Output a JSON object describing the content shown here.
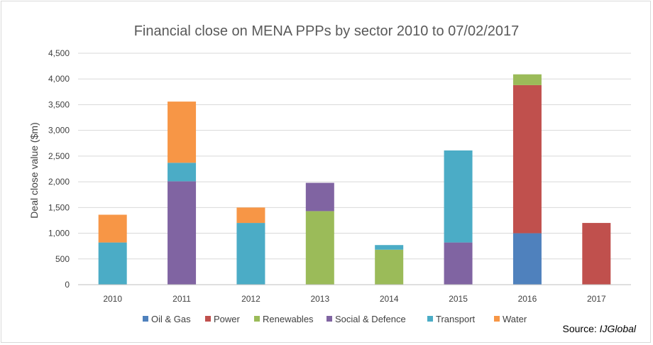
{
  "chart_data": {
    "type": "bar",
    "stacked": true,
    "title": "Financial close on MENA PPPs by sector 2010 to 07/02/2017",
    "xlabel": "",
    "ylabel": "Deal close value ($m)",
    "ylim": [
      0,
      4500
    ],
    "yticks": [
      0,
      500,
      1000,
      1500,
      2000,
      2500,
      3000,
      3500,
      4000,
      4500
    ],
    "ytick_labels": [
      "0",
      "500",
      "1,000",
      "1,500",
      "2,000",
      "2,500",
      "3,000",
      "3,500",
      "4,000",
      "4,500"
    ],
    "grid": true,
    "legend_position": "bottom",
    "categories": [
      "2010",
      "2011",
      "2012",
      "2013",
      "2014",
      "2015",
      "2016",
      "2017"
    ],
    "series": [
      {
        "name": "Oil & Gas",
        "color": "#4f81bd",
        "values": [
          0,
          0,
          0,
          0,
          0,
          0,
          1000,
          0
        ]
      },
      {
        "name": "Power",
        "color": "#c0504d",
        "values": [
          0,
          0,
          0,
          0,
          0,
          0,
          2880,
          1200
        ]
      },
      {
        "name": "Renewables",
        "color": "#9bbb59",
        "values": [
          0,
          0,
          0,
          1430,
          680,
          0,
          210,
          0
        ]
      },
      {
        "name": "Social & Defence",
        "color": "#8064a2",
        "values": [
          0,
          2010,
          0,
          550,
          0,
          820,
          0,
          0
        ]
      },
      {
        "name": "Transport",
        "color": "#4bacc6",
        "values": [
          820,
          360,
          1200,
          0,
          90,
          1790,
          0,
          0
        ]
      },
      {
        "name": "Water",
        "color": "#f79646",
        "values": [
          540,
          1190,
          300,
          0,
          0,
          0,
          0,
          0
        ]
      }
    ],
    "source_label": "Source: ",
    "source_name": "IJGlobal"
  }
}
